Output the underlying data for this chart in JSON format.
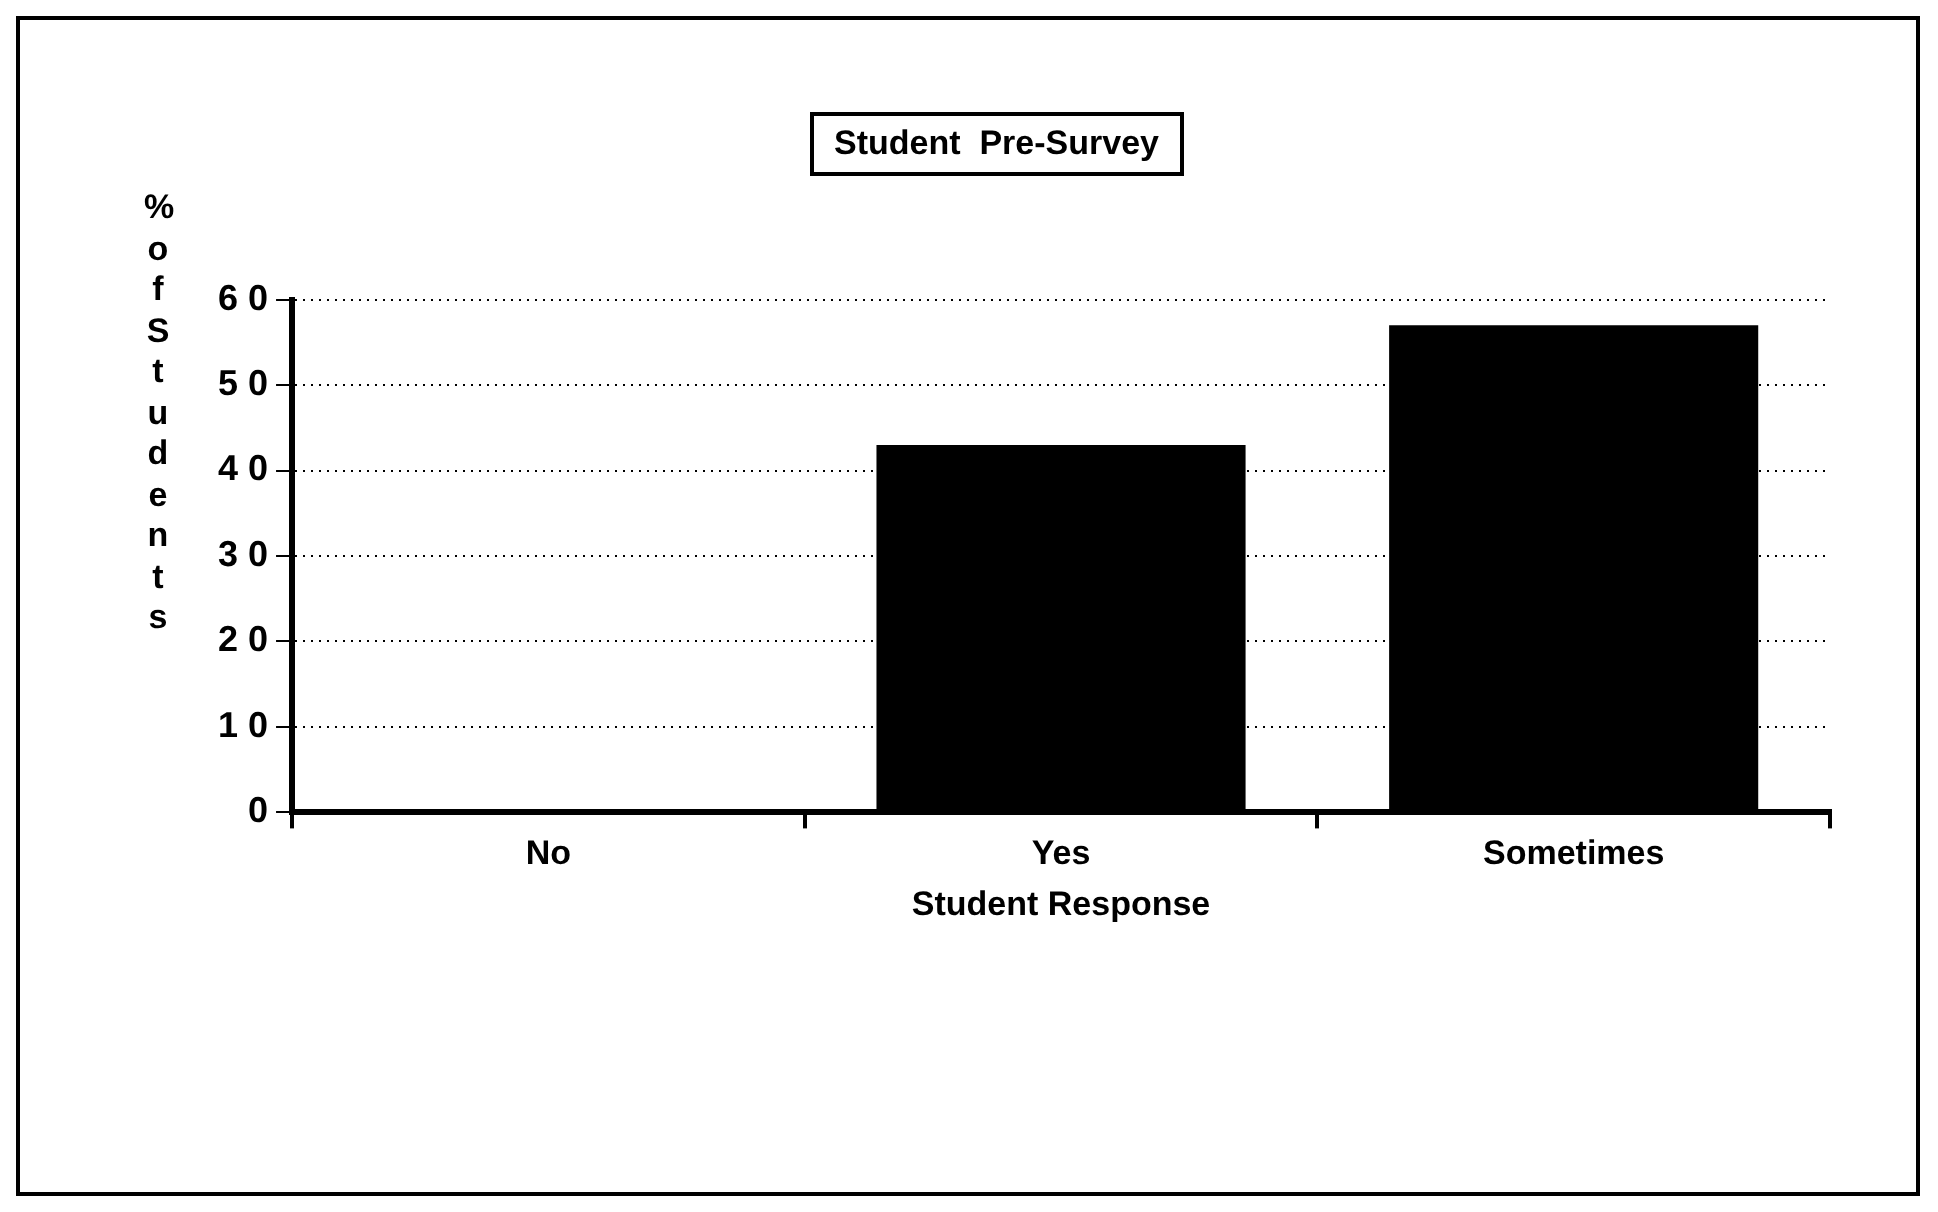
{
  "chart_data": {
    "type": "bar",
    "title": "Student  Pre-Survey",
    "xlabel": "Student Response",
    "ylabel": "% of Students",
    "categories": [
      "No",
      "Yes",
      "Sometimes"
    ],
    "values": [
      0,
      43,
      57
    ],
    "color": "#000000",
    "ylim": [
      0,
      60
    ],
    "yticks": [
      0,
      10,
      20,
      30,
      40,
      50,
      60
    ],
    "grid": "y",
    "legend": false
  }
}
